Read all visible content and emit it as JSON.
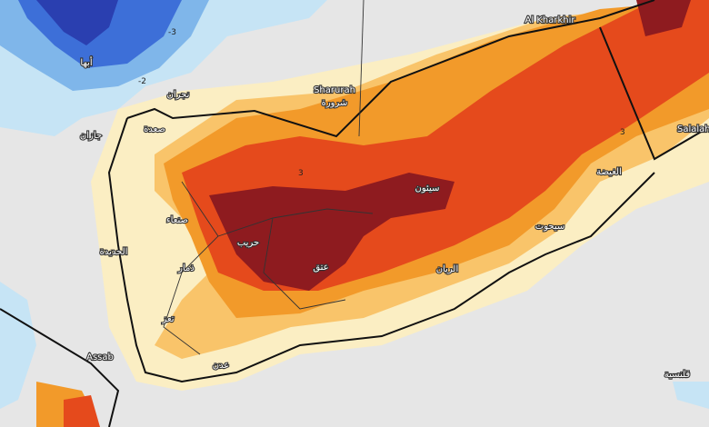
{
  "places": [
    "Al Kharkhir",
    "Sharurah",
    "شرورة",
    "Salalah",
    "Assab",
    "أبها",
    "نجران",
    "صعدة",
    "جازان",
    "صنعاء",
    "الحديدة",
    "حريب",
    "ذمار",
    "عتق",
    "سيئون",
    "الغيضة",
    "سيحوت",
    "الريان",
    "تعز",
    "عدن",
    "قلنسية"
  ],
  "contours": [
    "-3",
    "-2",
    "3",
    "3"
  ]
}
